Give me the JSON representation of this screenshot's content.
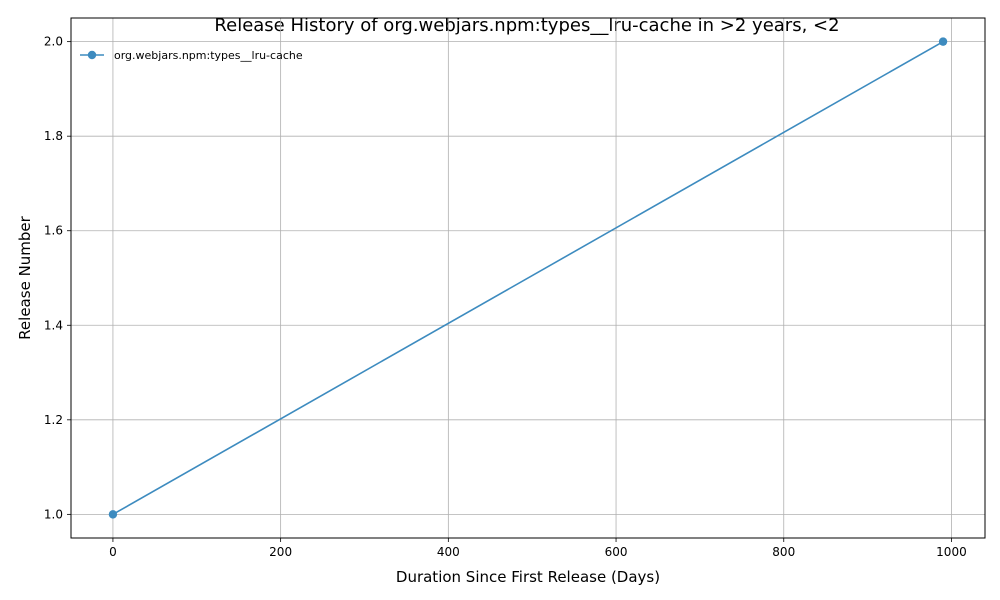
{
  "chart_data": {
    "type": "line",
    "title": "Release History of org.webjars.npm:types__lru-cache in >2 years, <2",
    "xlabel": "Duration Since First Release (Days)",
    "ylabel": "Release Number",
    "xlim": [
      -50,
      1040
    ],
    "ylim": [
      0.95,
      2.05
    ],
    "xticks": [
      0,
      200,
      400,
      600,
      800,
      1000
    ],
    "yticks": [
      1.0,
      1.2,
      1.4,
      1.6,
      1.8,
      2.0
    ],
    "xtick_labels": [
      "0",
      "200",
      "400",
      "600",
      "800",
      "1000"
    ],
    "ytick_labels": [
      "1.0",
      "1.2",
      "1.4",
      "1.6",
      "1.8",
      "2.0"
    ],
    "grid": true,
    "legend_position": "top-left",
    "series": [
      {
        "name": "org.webjars.npm:types__lru-cache",
        "color": "#3d8bbf",
        "x": [
          0,
          990
        ],
        "y": [
          1,
          2
        ]
      }
    ]
  }
}
